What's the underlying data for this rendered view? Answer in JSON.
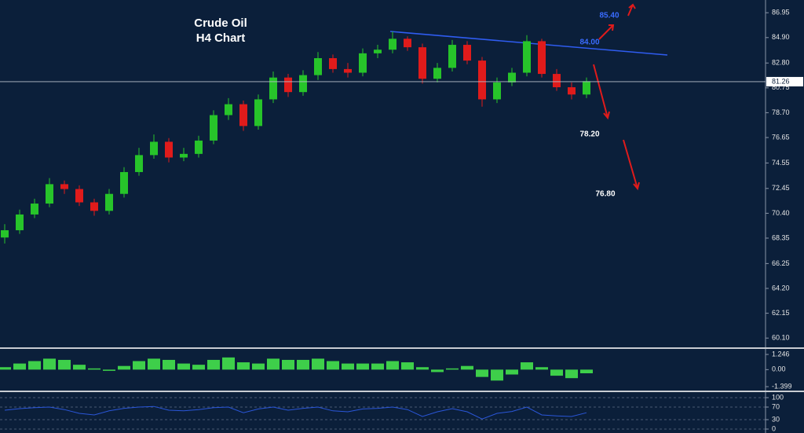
{
  "chart_data": [
    {
      "type": "candlestick",
      "title": "Crude Oil",
      "subtitle": "H4 Chart",
      "open": [
        68.4,
        69.0,
        70.3,
        71.2,
        72.8,
        72.4,
        71.3,
        70.6,
        72.0,
        73.8,
        75.2,
        76.3,
        75.0,
        75.3,
        76.4,
        78.5,
        79.4,
        77.6,
        79.8,
        81.6,
        80.4,
        81.8,
        83.2,
        82.3,
        82.0,
        83.6,
        83.9,
        84.8,
        84.1,
        81.5,
        82.4,
        84.3,
        83.0,
        79.8,
        81.2,
        82.0,
        84.6,
        81.9,
        80.8,
        80.2
      ],
      "high": [
        69.5,
        70.7,
        71.6,
        73.3,
        73.1,
        72.7,
        71.6,
        72.4,
        74.2,
        75.8,
        76.9,
        76.6,
        75.8,
        76.8,
        78.9,
        79.9,
        79.7,
        80.2,
        82.1,
        81.9,
        82.2,
        83.7,
        83.5,
        82.8,
        84.0,
        84.3,
        85.4,
        85.0,
        84.4,
        82.8,
        84.7,
        84.6,
        83.3,
        81.6,
        82.4,
        85.1,
        84.8,
        82.3,
        81.2,
        81.6
      ],
      "low": [
        67.9,
        68.7,
        70.0,
        70.9,
        72.0,
        71.0,
        70.2,
        70.3,
        71.7,
        73.5,
        74.9,
        74.6,
        74.7,
        75.0,
        76.1,
        78.1,
        77.2,
        77.3,
        79.5,
        80.0,
        80.1,
        81.4,
        82.0,
        81.6,
        81.7,
        83.2,
        83.6,
        83.8,
        81.1,
        81.2,
        82.1,
        82.7,
        79.2,
        79.5,
        80.9,
        81.7,
        81.6,
        80.5,
        79.8,
        79.9
      ],
      "close": [
        69.0,
        70.3,
        71.2,
        72.8,
        72.4,
        71.3,
        70.6,
        72.0,
        73.8,
        75.2,
        76.3,
        75.0,
        75.3,
        76.4,
        78.5,
        79.4,
        77.6,
        79.8,
        81.6,
        80.4,
        81.8,
        83.2,
        82.3,
        82.0,
        83.6,
        83.9,
        84.8,
        84.1,
        81.5,
        82.4,
        84.3,
        83.0,
        79.8,
        81.2,
        82.0,
        84.6,
        81.9,
        80.8,
        80.2,
        81.3
      ],
      "up_color": "#27c42a",
      "down_color": "#e01b1b",
      "ylim": [
        59.4,
        88.0
      ],
      "yticks": [
        86.95,
        {
          "value": 84.9,
          "label": "84.90"
        },
        {
          "value": 82.8,
          "label": "82.80"
        },
        80.75,
        {
          "value": 78.7,
          "label": "78.70"
        },
        76.65,
        74.55,
        72.45,
        {
          "value": 70.4,
          "label": "70.40"
        },
        68.35,
        66.25,
        {
          "value": 64.2,
          "label": "64.20"
        },
        62.15,
        {
          "value": 60.1,
          "label": "60.10"
        }
      ],
      "last_price": 81.26,
      "annotations": [
        "85.40",
        "84.00",
        "78.20",
        "76.80"
      ]
    },
    {
      "type": "bar",
      "values": [
        0.2,
        0.5,
        0.7,
        0.9,
        0.8,
        0.4,
        0.1,
        -0.1,
        0.3,
        0.7,
        0.9,
        0.8,
        0.5,
        0.4,
        0.8,
        1.0,
        0.6,
        0.5,
        0.9,
        0.8,
        0.8,
        0.9,
        0.7,
        0.5,
        0.5,
        0.5,
        0.7,
        0.6,
        0.2,
        -0.2,
        0.1,
        0.3,
        -0.6,
        -0.9,
        -0.4,
        0.6,
        0.2,
        -0.5,
        -0.7,
        -0.3
      ],
      "color": "#3ecf4a",
      "ylim": [
        -1.72,
        1.7
      ],
      "yticks": [
        1.246,
        {
          "value": 0,
          "label": "0.00"
        },
        -1.399
      ]
    },
    {
      "type": "line",
      "values": [
        60,
        65,
        68,
        70,
        62,
        50,
        45,
        58,
        66,
        70,
        72,
        60,
        58,
        62,
        68,
        70,
        52,
        64,
        70,
        60,
        66,
        70,
        58,
        55,
        64,
        66,
        70,
        62,
        40,
        55,
        65,
        55,
        32,
        50,
        56,
        70,
        45,
        42,
        40,
        52
      ],
      "color": "#2a56d8",
      "ylim": [
        -12.5,
        117.5
      ],
      "yticks": [
        100,
        70,
        30,
        0
      ]
    }
  ]
}
